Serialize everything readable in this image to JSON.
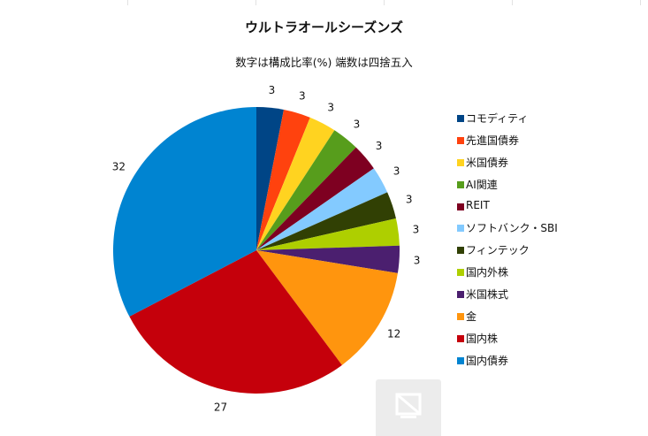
{
  "chart_data": {
    "type": "pie",
    "title": "ウルトラオールシーズンズ",
    "subtitle": "数字は構成比率(%) 端数は四捨五入",
    "legend_position": "right",
    "slices": [
      {
        "label": "コモディティ",
        "value": 3,
        "color": "#004586"
      },
      {
        "label": "先進国債券",
        "value": 3,
        "color": "#ff420e"
      },
      {
        "label": "米国債券",
        "value": 3,
        "color": "#ffd320"
      },
      {
        "label": "AI関連",
        "value": 3,
        "color": "#579d1c"
      },
      {
        "label": "REIT",
        "value": 3,
        "color": "#7e0021"
      },
      {
        "label": "ソフトバンク・SBI",
        "value": 3,
        "color": "#83caff"
      },
      {
        "label": "フィンテック",
        "value": 3,
        "color": "#314004"
      },
      {
        "label": "国内外株",
        "value": 3,
        "color": "#aecf00"
      },
      {
        "label": "米国株式",
        "value": 3,
        "color": "#4b1f6f"
      },
      {
        "label": "金",
        "value": 12,
        "color": "#ff950e"
      },
      {
        "label": "国内株",
        "value": 27,
        "color": "#c5000b"
      },
      {
        "label": "国内債券",
        "value": 32,
        "color": "#0084d1"
      }
    ]
  },
  "overlay": {
    "placeholder_icon": "image-placeholder-icon"
  }
}
